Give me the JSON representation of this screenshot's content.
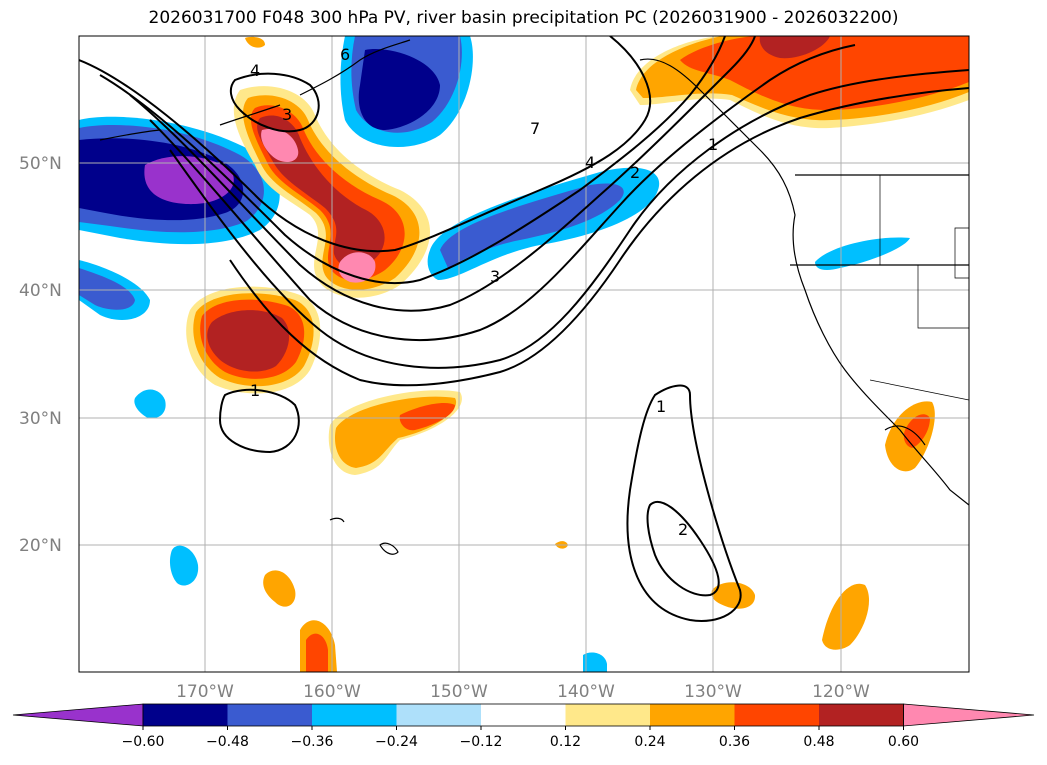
{
  "title": "2026031700 F048 300 hPa PV, river basin precipitation PC (2026031900 - 2026032200)",
  "lat_labels": [
    "50°N",
    "40°N",
    "30°N",
    "20°N"
  ],
  "lon_labels": [
    "170°W",
    "160°W",
    "150°W",
    "140°W",
    "130°W",
    "120°W"
  ],
  "contour_labels": [
    "4",
    "6",
    "3",
    "7",
    "4",
    "2",
    "1",
    "3",
    "1",
    "1",
    "2"
  ],
  "colorbar": {
    "ticks": [
      "−0.60",
      "−0.48",
      "−0.36",
      "−0.24",
      "−0.12",
      "0.12",
      "0.24",
      "0.36",
      "0.48",
      "0.60"
    ],
    "colors": [
      "#9932cc",
      "#00008b",
      "#3a5bd0",
      "#00bfff",
      "#aee0fa",
      "#ffffff",
      "#ffe88a",
      "#ffa500",
      "#ff4500",
      "#b22222",
      "#ff88b0"
    ]
  },
  "colors": {
    "background": "#ffffff",
    "grid": "#b0b0b0",
    "coast": "#000000"
  }
}
